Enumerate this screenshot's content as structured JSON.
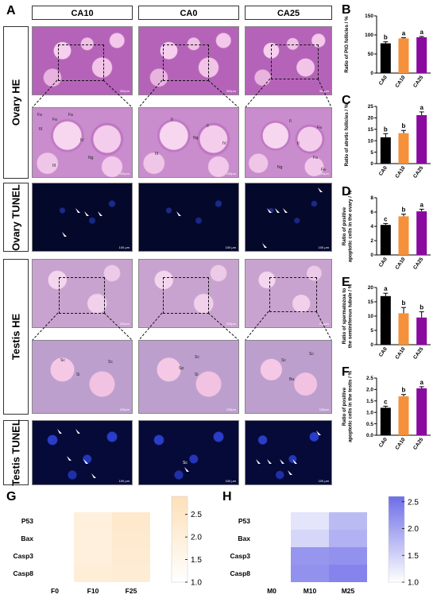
{
  "panel_labels": [
    "A",
    "B",
    "C",
    "D",
    "E",
    "F",
    "G",
    "H"
  ],
  "columns": [
    "CA10",
    "CA0",
    "CA25"
  ],
  "rows": [
    "Ovary HE",
    "Ovary TUNEL",
    "Testis HE",
    "Testis TUNEL"
  ],
  "scale_bars": {
    "ovary_he_top": "300μm",
    "ovary_he_zoom": "100μm",
    "tunel": "100 μm",
    "testis_he_top": "200μm",
    "testis_he_zoom": "100μm"
  },
  "ovary_tags": [
    "Fa",
    "Fa",
    "Fa",
    "III",
    "IV",
    "Ng",
    "III",
    "II",
    "Ng",
    "II",
    "IV",
    "III",
    "II",
    "Fa",
    "II",
    "Ng",
    "Fa",
    "Fa"
  ],
  "testis_tags": [
    "Sc",
    "Sc",
    "Si",
    "Sc",
    "Sp",
    "Si",
    "Sc",
    "Sc",
    "Ba"
  ],
  "chart_data": [
    {
      "id": "B",
      "type": "bar",
      "categories": [
        "CA0",
        "CA10",
        "CA25"
      ],
      "values": [
        78,
        91,
        94
      ],
      "errors": [
        4,
        2,
        2
      ],
      "letters": [
        "b",
        "a",
        "a"
      ],
      "colors": [
        "#000000",
        "#f5913a",
        "#8a0aa0"
      ],
      "ylabel": "Ratio of PtG follicles / %",
      "ylim": [
        0,
        150
      ],
      "yticks": [
        0,
        50,
        100,
        150
      ]
    },
    {
      "id": "C",
      "type": "bar",
      "categories": [
        "CA0",
        "CA10",
        "CA25"
      ],
      "values": [
        11.5,
        13.3,
        21.2
      ],
      "errors": [
        1.6,
        1.2,
        1.4
      ],
      "letters": [
        "b",
        "b",
        "a"
      ],
      "colors": [
        "#000000",
        "#f5913a",
        "#8a0aa0"
      ],
      "ylabel": "Ratio of atretic follicles / %",
      "ylim": [
        0,
        25
      ],
      "yticks": [
        0,
        5,
        10,
        15,
        20,
        25
      ]
    },
    {
      "id": "D",
      "type": "bar",
      "categories": [
        "CA0",
        "CA10",
        "CA25"
      ],
      "values": [
        4.2,
        5.4,
        6.1
      ],
      "errors": [
        0.2,
        0.3,
        0.3
      ],
      "letters": [
        "c",
        "b",
        "a"
      ],
      "colors": [
        "#000000",
        "#f5913a",
        "#8a0aa0"
      ],
      "ylabel": "Ratio of positive apoptotic cells in the ovary / %",
      "ylim": [
        0,
        8
      ],
      "yticks": [
        0,
        2,
        4,
        6,
        8
      ]
    },
    {
      "id": "E",
      "type": "bar",
      "categories": [
        "CA0",
        "CA10",
        "CA25"
      ],
      "values": [
        17,
        11,
        9.5
      ],
      "errors": [
        1,
        2,
        2
      ],
      "letters": [
        "a",
        "b",
        "b"
      ],
      "colors": [
        "#000000",
        "#f5913a",
        "#8a0aa0"
      ],
      "ylabel": "Ratio of spermatozoa to the seminiferous tubule / %",
      "ylim": [
        0,
        20
      ],
      "yticks": [
        0,
        5,
        10,
        15,
        20
      ]
    },
    {
      "id": "F",
      "type": "bar",
      "categories": [
        "CA0",
        "CA10",
        "CA25"
      ],
      "values": [
        1.2,
        1.7,
        2.05
      ],
      "errors": [
        0.07,
        0.08,
        0.07
      ],
      "letters": [
        "c",
        "b",
        "a"
      ],
      "colors": [
        "#000000",
        "#f5913a",
        "#8a0aa0"
      ],
      "ylabel": "Ratio of positive apoptotic cells in the testis / %",
      "ylim": [
        0,
        2.5
      ],
      "yticks": [
        0.0,
        0.5,
        1.0,
        1.5,
        2.0,
        2.5
      ]
    },
    {
      "id": "G",
      "type": "heatmap",
      "rows": [
        "P53",
        "Bax",
        "Casp3",
        "Casp8"
      ],
      "cols": [
        "F0",
        "F10",
        "F25"
      ],
      "values": [
        [
          1.0,
          1.9,
          2.35
        ],
        [
          1.0,
          1.95,
          2.3
        ],
        [
          1.0,
          1.95,
          2.2
        ],
        [
          1.0,
          2.05,
          2.15
        ]
      ],
      "range": [
        1.0,
        2.9
      ],
      "colorbar_ticks": [
        1.0,
        1.5,
        2.0,
        2.5
      ],
      "color_low": "#ffffff",
      "color_high": "#fde0b8"
    },
    {
      "id": "H",
      "type": "heatmap",
      "rows": [
        "P53",
        "Bax",
        "Casp3",
        "Casp8"
      ],
      "cols": [
        "M0",
        "M10",
        "M25"
      ],
      "values": [
        [
          1.0,
          1.3,
          1.75
        ],
        [
          1.0,
          1.45,
          1.85
        ],
        [
          1.0,
          2.15,
          2.2
        ],
        [
          1.0,
          2.2,
          2.35
        ]
      ],
      "range": [
        1.0,
        2.6
      ],
      "colorbar_ticks": [
        1.0,
        1.5,
        2.0,
        2.5
      ],
      "color_low": "#ffffff",
      "color_high": "#6d6de8"
    }
  ]
}
